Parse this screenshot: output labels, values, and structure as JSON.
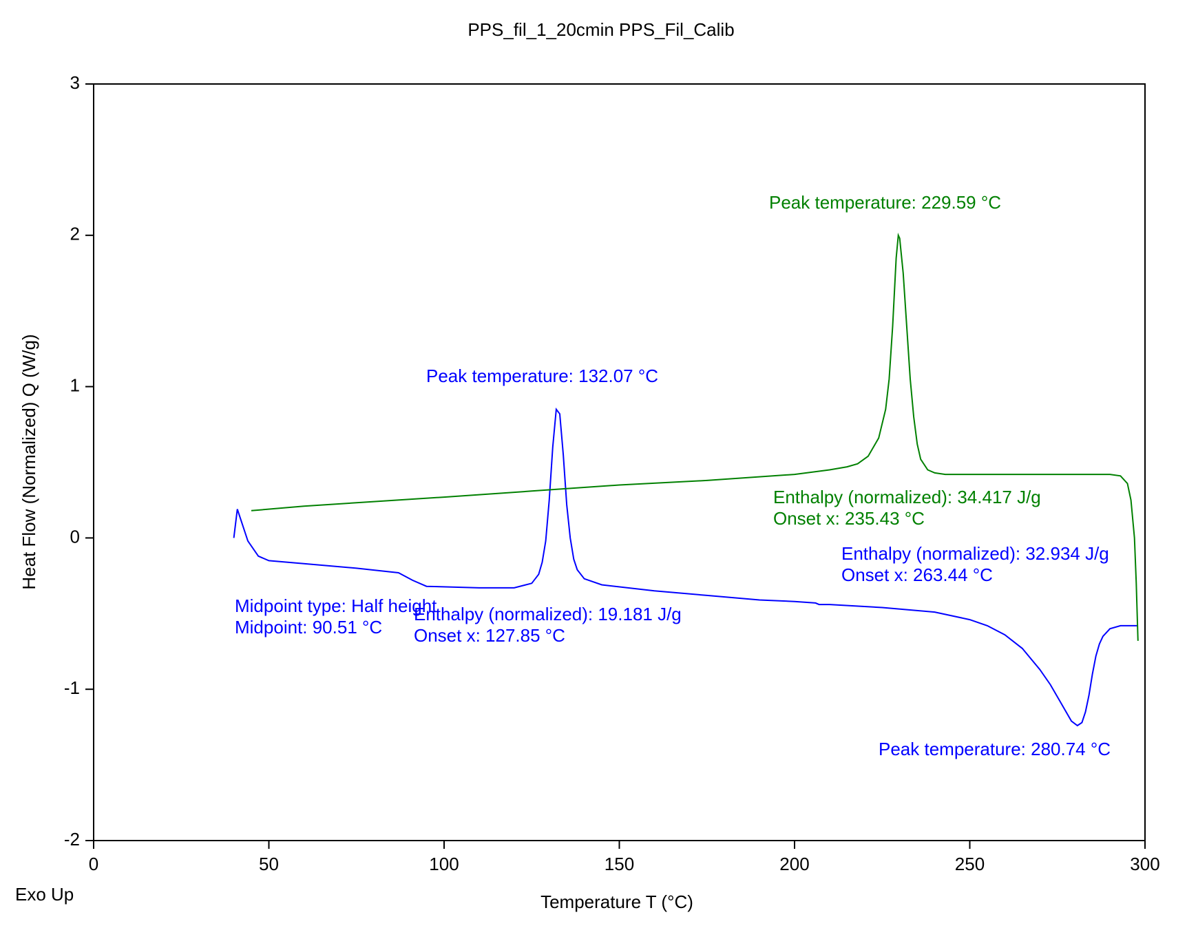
{
  "chart_data": {
    "type": "line",
    "title": "PPS_fil_1_20cmin PPS_Fil_Calib",
    "x_label": "Temperature T (°C)",
    "y_label": "Heat Flow (Normalized) Q (W/g)",
    "note": "Exo Up",
    "xlim": [
      0,
      300
    ],
    "ylim": [
      -2,
      3
    ],
    "xticks": [
      0,
      50,
      100,
      150,
      200,
      250,
      300
    ],
    "yticks": [
      -2,
      -1,
      0,
      1,
      2,
      3
    ],
    "series": [
      {
        "color": "#0000ff",
        "x": [
          40,
          41,
          42,
          44,
          47,
          50,
          60,
          75,
          87,
          91,
          95,
          110,
          120,
          125,
          127,
          128,
          129,
          130,
          131,
          132,
          133,
          134,
          135,
          136,
          137,
          138,
          140,
          145,
          160,
          175,
          190,
          200,
          206,
          207,
          210,
          225,
          240,
          250,
          255,
          260,
          265,
          270,
          273,
          275,
          277,
          279,
          280.7,
          282,
          283,
          284,
          285,
          286,
          287,
          288,
          290,
          293,
          296,
          298
        ],
        "values": [
          0,
          0.19,
          0.12,
          -0.02,
          -0.12,
          -0.15,
          -0.17,
          -0.2,
          -0.23,
          -0.28,
          -0.32,
          -0.33,
          -0.33,
          -0.3,
          -0.24,
          -0.16,
          -0.02,
          0.25,
          0.6,
          0.85,
          0.82,
          0.55,
          0.22,
          0.0,
          -0.14,
          -0.21,
          -0.27,
          -0.31,
          -0.35,
          -0.38,
          -0.41,
          -0.42,
          -0.43,
          -0.44,
          -0.44,
          -0.46,
          -0.49,
          -0.54,
          -0.58,
          -0.64,
          -0.73,
          -0.87,
          -0.97,
          -1.05,
          -1.13,
          -1.21,
          -1.24,
          -1.22,
          -1.15,
          -1.04,
          -0.9,
          -0.78,
          -0.7,
          -0.65,
          -0.6,
          -0.58,
          -0.58,
          -0.58
        ]
      },
      {
        "color": "#008000",
        "x": [
          45,
          60,
          80,
          100,
          125,
          150,
          175,
          200,
          210,
          215,
          218,
          221,
          224,
          226,
          227,
          228,
          229,
          229.6,
          230,
          231,
          232,
          233,
          234,
          235,
          236,
          238,
          240,
          243,
          250,
          260,
          270,
          280,
          290,
          293,
          295,
          296,
          297,
          297.5,
          298
        ],
        "values": [
          0.18,
          0.21,
          0.24,
          0.27,
          0.31,
          0.35,
          0.38,
          0.42,
          0.45,
          0.47,
          0.49,
          0.54,
          0.66,
          0.85,
          1.05,
          1.4,
          1.85,
          2.0,
          1.98,
          1.75,
          1.4,
          1.05,
          0.8,
          0.62,
          0.52,
          0.45,
          0.43,
          0.42,
          0.42,
          0.42,
          0.42,
          0.42,
          0.42,
          0.41,
          0.36,
          0.25,
          0.0,
          -0.3,
          -0.68
        ]
      }
    ],
    "annotations": [
      {
        "text": "Peak temperature: 229.59 °C",
        "color": "#008000"
      },
      {
        "text": "Peak temperature: 132.07 °C",
        "color": "#0000ff"
      },
      {
        "text": "Enthalpy (normalized): 34.417 J/g",
        "color": "#008000"
      },
      {
        "text": "Onset x: 235.43 °C",
        "color": "#008000"
      },
      {
        "text": "Enthalpy (normalized): 32.934 J/g",
        "color": "#0000ff"
      },
      {
        "text": "Onset x: 263.44 °C",
        "color": "#0000ff"
      },
      {
        "text": "Midpoint type: Half height",
        "color": "#0000ff"
      },
      {
        "text": "Midpoint: 90.51 °C",
        "color": "#0000ff"
      },
      {
        "text": "Enthalpy (normalized): 19.181 J/g",
        "color": "#0000ff"
      },
      {
        "text": "Onset x: 127.85 °C",
        "color": "#0000ff"
      },
      {
        "text": "Peak temperature: 280.74 °C",
        "color": "#0000ff"
      }
    ]
  }
}
